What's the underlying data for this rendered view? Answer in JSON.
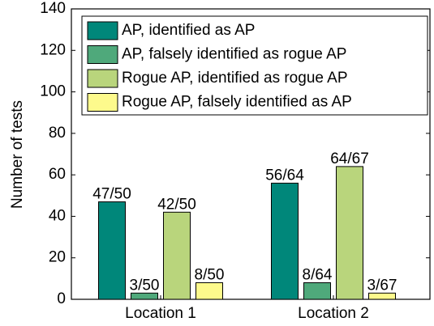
{
  "chart_data": {
    "type": "bar",
    "ylabel": "Number of tests",
    "categories": [
      "Location 1",
      "Location 2"
    ],
    "series": [
      {
        "name": "AP, identified as AP",
        "color": "#00877a",
        "values": [
          47,
          56
        ],
        "value_labels": [
          "47/50",
          "56/64"
        ]
      },
      {
        "name": "AP, falsely identified as rogue AP",
        "color": "#4fa97b",
        "values": [
          3,
          8
        ],
        "value_labels": [
          "3/50",
          "8/64"
        ]
      },
      {
        "name": "Rogue AP, identified as rogue AP",
        "color": "#b9d57c",
        "values": [
          42,
          64
        ],
        "value_labels": [
          "42/50",
          "64/67"
        ]
      },
      {
        "name": "Rogue AP, falsely identified as AP",
        "color": "#fdfa8c",
        "values": [
          8,
          3
        ],
        "value_labels": [
          "8/50",
          "3/67"
        ]
      }
    ],
    "ylim": [
      0,
      140
    ],
    "yticks": [
      0,
      20,
      40,
      60,
      80,
      100,
      120,
      140
    ],
    "legend": "upper left"
  }
}
